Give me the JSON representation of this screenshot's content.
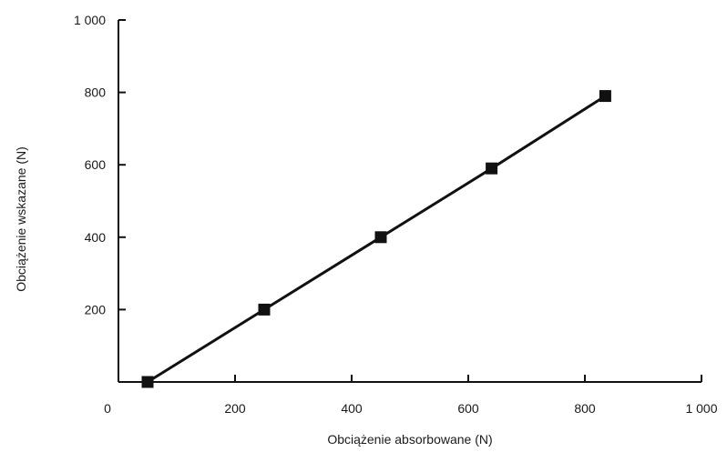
{
  "chart_data": {
    "type": "line",
    "title": "",
    "xlabel": "Obciążenie absorbowane (N)",
    "ylabel": "Obciążenie wskazane (N)",
    "xlim": [
      0,
      1000
    ],
    "ylim": [
      0,
      1000
    ],
    "x_ticks": [
      "0",
      "200",
      "400",
      "600",
      "800",
      "1 000"
    ],
    "y_ticks": [
      "0",
      "200",
      "400",
      "600",
      "800",
      "1 000"
    ],
    "x_tick_values": [
      0,
      200,
      400,
      600,
      800,
      1000
    ],
    "y_tick_values": [
      0,
      200,
      400,
      600,
      800,
      1000
    ],
    "grid": false,
    "legend": "none",
    "series": [
      {
        "x": [
          50,
          250,
          450,
          640,
          835
        ],
        "y": [
          0,
          200,
          400,
          590,
          790
        ],
        "color": "#111111",
        "marker": "square"
      }
    ]
  }
}
